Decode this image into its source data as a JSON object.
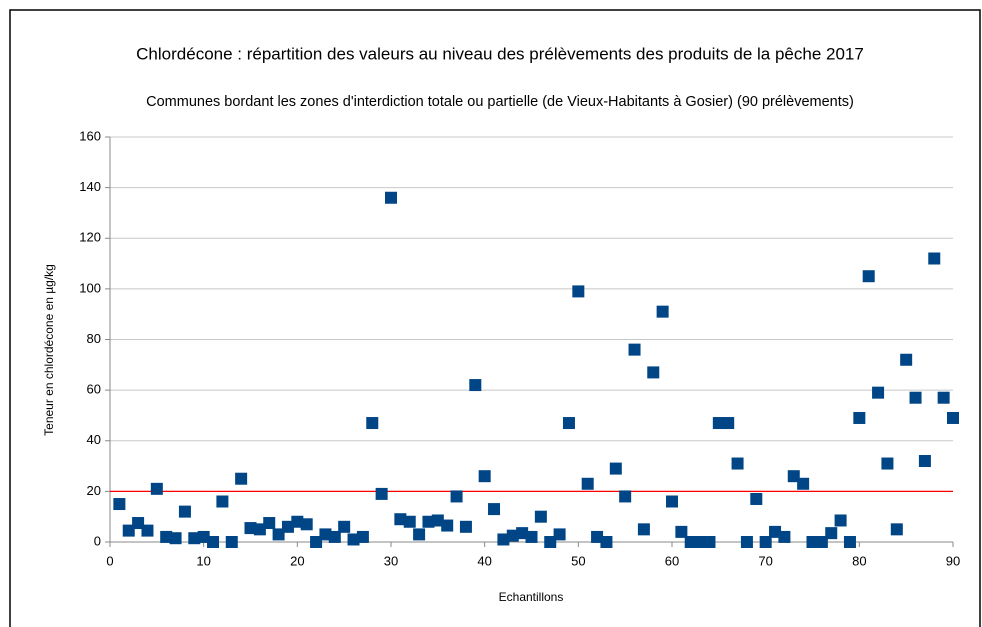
{
  "chart_data": {
    "type": "scatter",
    "title": "Chlordécone : répartition des valeurs au niveau des prélèvements des produits de la pêche 2017",
    "subtitle": "Communes bordant les zones d'interdiction totale ou partielle (de Vieux-Habitants à Gosier) (90 prélèvements)",
    "x_label": "Echantillons",
    "y_label": "Teneur en chlordécone en µg/kg",
    "x": [
      1,
      2,
      3,
      4,
      5,
      6,
      7,
      8,
      9,
      10,
      11,
      12,
      13,
      14,
      15,
      16,
      17,
      18,
      19,
      20,
      21,
      22,
      23,
      24,
      25,
      26,
      27,
      28,
      29,
      30,
      31,
      32,
      33,
      34,
      35,
      36,
      37,
      38,
      39,
      40,
      41,
      42,
      43,
      44,
      45,
      46,
      47,
      48,
      49,
      50,
      51,
      52,
      53,
      54,
      55,
      56,
      57,
      58,
      59,
      60,
      61,
      62,
      63,
      64,
      65,
      66,
      67,
      68,
      69,
      70,
      71,
      72,
      73,
      74,
      75,
      76,
      77,
      78,
      79,
      80,
      81,
      82,
      83,
      84,
      85,
      86,
      87,
      88,
      89,
      90
    ],
    "series": [
      {
        "color": "#004586",
        "values": [
          15,
          4.5,
          7.5,
          4.5,
          21,
          2,
          1.5,
          12,
          1.5,
          2,
          0,
          16,
          0,
          25,
          5.5,
          5,
          7.5,
          3,
          6,
          8,
          7,
          0,
          3,
          2,
          6,
          1,
          2,
          47,
          19,
          136,
          9,
          8,
          3,
          8,
          8.5,
          6.5,
          18,
          6,
          62,
          26,
          13,
          1,
          2.5,
          3.5,
          2,
          10,
          0,
          3,
          47,
          99,
          23,
          2,
          0,
          29,
          18,
          76,
          5,
          67,
          91,
          16,
          4,
          0,
          0,
          0,
          47,
          47,
          31,
          0,
          17,
          0,
          4,
          2,
          26,
          23,
          0,
          0,
          3.5,
          8.5,
          0,
          49,
          105,
          59,
          31,
          5,
          72,
          57,
          32,
          112,
          57,
          49
        ]
      }
    ],
    "threshold": {
      "value": 20,
      "color": "#ff0000"
    },
    "xlim": [
      0,
      90
    ],
    "xticks": [
      0,
      10,
      20,
      30,
      40,
      50,
      60,
      70,
      80,
      90
    ],
    "ylim": [
      0,
      160
    ],
    "yticks": [
      0,
      20,
      40,
      60,
      80,
      100,
      120,
      140,
      160
    ],
    "grid": true
  }
}
